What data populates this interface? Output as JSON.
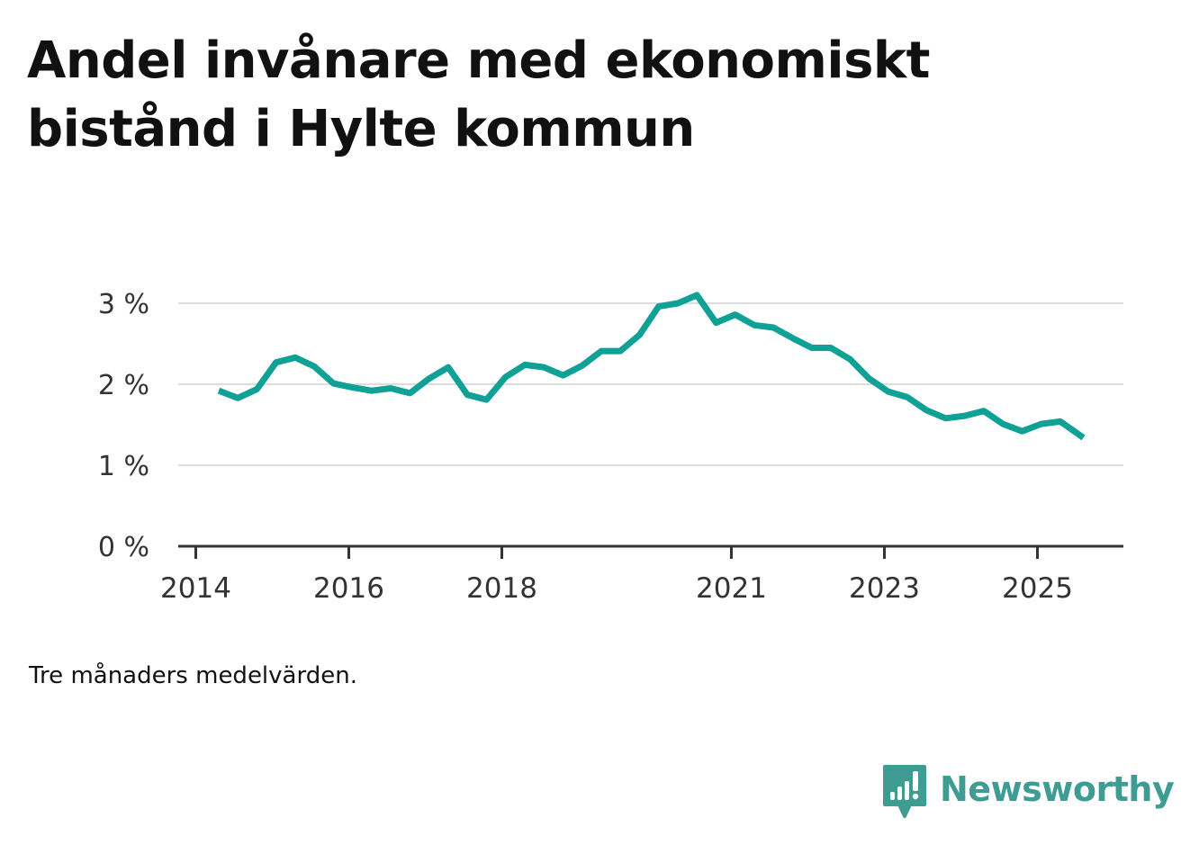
{
  "title": "Andel invånare med ekonomiskt bistånd i Hylte kommun",
  "note": "Tre månaders medelvärden.",
  "brand": {
    "name": "Newsworthy",
    "logo_icon": "bar-chart-speech-bubble-icon",
    "color": "#3f9c93"
  },
  "colors": {
    "line": "#0fa195",
    "grid": "#dddddd",
    "axis": "#333333",
    "text": "#111111",
    "tick_text": "#333333"
  },
  "chart_data": {
    "type": "line",
    "title": "Andel invånare med ekonomiskt bistånd i Hylte kommun",
    "xlabel": "",
    "ylabel": "",
    "x_unit": "year",
    "xlim": [
      2013.8,
      2026.0
    ],
    "ylim": [
      0,
      3
    ],
    "x_ticks": [
      {
        "value": 2014,
        "label": "2014"
      },
      {
        "value": 2016,
        "label": "2016"
      },
      {
        "value": 2018,
        "label": "2018"
      },
      {
        "value": 2021,
        "label": "2021"
      },
      {
        "value": 2023,
        "label": "2023"
      },
      {
        "value": 2025,
        "label": "2025"
      }
    ],
    "y_ticks": [
      {
        "value": 0,
        "label": "0 %"
      },
      {
        "value": 1,
        "label": "1 %"
      },
      {
        "value": 2,
        "label": "2 %"
      },
      {
        "value": 3,
        "label": "3 %"
      }
    ],
    "grid": true,
    "series": [
      {
        "name": "Andel invånare med ekonomiskt bistånd",
        "x": [
          2014.3,
          2014.55,
          2014.8,
          2015.05,
          2015.3,
          2015.55,
          2015.8,
          2016.05,
          2016.3,
          2016.55,
          2016.8,
          2017.05,
          2017.3,
          2017.55,
          2017.8,
          2018.05,
          2018.3,
          2018.55,
          2018.8,
          2019.05,
          2019.3,
          2019.55,
          2019.8,
          2020.05,
          2020.3,
          2020.55,
          2020.8,
          2021.05,
          2021.3,
          2021.55,
          2021.8,
          2022.05,
          2022.3,
          2022.55,
          2022.8,
          2023.05,
          2023.3,
          2023.55,
          2023.8,
          2024.05,
          2024.3,
          2024.55,
          2024.8,
          2025.05,
          2025.3,
          2025.6
        ],
        "values": [
          1.92,
          1.83,
          1.94,
          2.27,
          2.33,
          2.22,
          2.01,
          1.96,
          1.92,
          1.95,
          1.89,
          2.07,
          2.21,
          1.87,
          1.81,
          2.09,
          2.24,
          2.21,
          2.11,
          2.23,
          2.41,
          2.41,
          2.61,
          2.96,
          3.0,
          3.1,
          2.76,
          2.86,
          2.73,
          2.7,
          2.57,
          2.45,
          2.45,
          2.31,
          2.07,
          1.91,
          1.84,
          1.68,
          1.58,
          1.61,
          1.67,
          1.51,
          1.42,
          1.51,
          1.54,
          1.34
        ]
      }
    ]
  }
}
